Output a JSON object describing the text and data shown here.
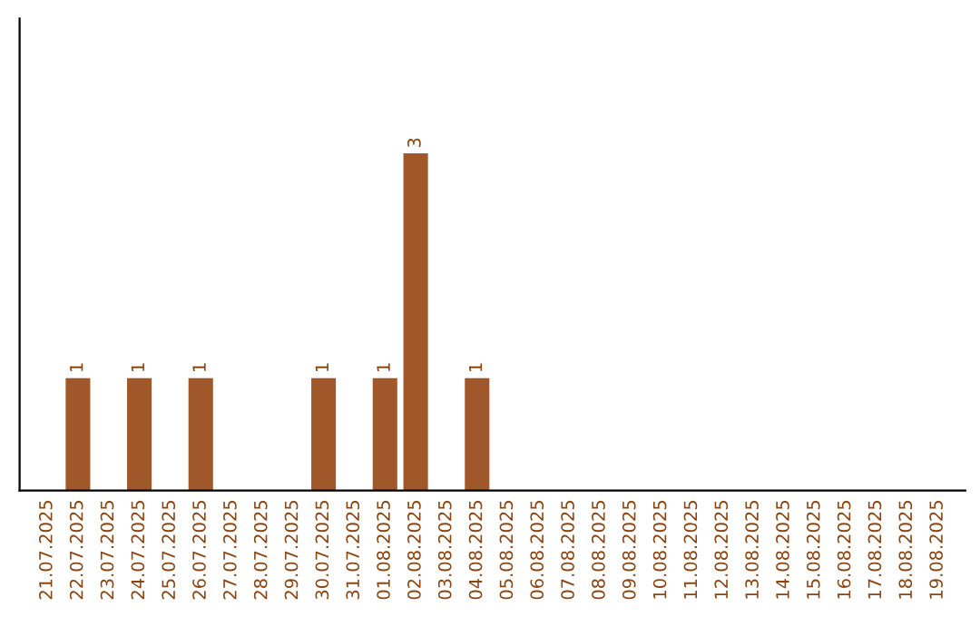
{
  "chart_data": {
    "type": "bar",
    "categories": [
      "21.07.2025",
      "22.07.2025",
      "23.07.2025",
      "24.07.2025",
      "25.07.2025",
      "26.07.2025",
      "27.07.2025",
      "28.07.2025",
      "29.07.2025",
      "30.07.2025",
      "31.07.2025",
      "01.08.2025",
      "02.08.2025",
      "03.08.2025",
      "04.08.2025",
      "05.08.2025",
      "06.08.2025",
      "07.08.2025",
      "08.08.2025",
      "09.08.2025",
      "10.08.2025",
      "11.08.2025",
      "12.08.2025",
      "13.08.2025",
      "14.08.2025",
      "15.08.2025",
      "16.08.2025",
      "17.08.2025",
      "18.08.2025",
      "19.08.2025"
    ],
    "values": [
      0,
      1,
      0,
      1,
      0,
      1,
      0,
      0,
      0,
      1,
      0,
      1,
      3,
      0,
      1,
      0,
      0,
      0,
      0,
      0,
      0,
      0,
      0,
      0,
      0,
      0,
      0,
      0,
      0,
      0
    ],
    "value_labels": [
      null,
      "1",
      null,
      "1",
      null,
      "1",
      null,
      null,
      null,
      "1",
      null,
      "1",
      "3",
      null,
      "1",
      null,
      null,
      null,
      null,
      null,
      null,
      null,
      null,
      null,
      null,
      null,
      null,
      null,
      null,
      null
    ],
    "color": "#a0572a",
    "ylim": [
      0,
      4.2
    ],
    "tick_labels": "x",
    "grid": false,
    "legend": false
  }
}
